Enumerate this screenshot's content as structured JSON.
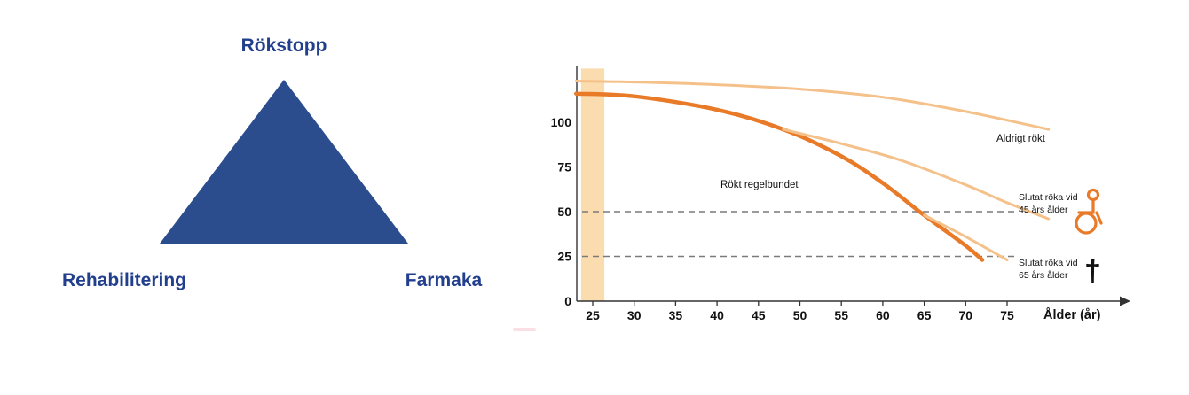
{
  "theme": {
    "blue": "#223f8d",
    "triangle_blue": "#2b4d8e",
    "orange_dark": "#e87a28",
    "orange_light": "#f5c18a",
    "band": "#fbdcae",
    "dash_gray": "#7a7a7a"
  },
  "diagram": {
    "top_label": "Rökstopp",
    "bottom_left_label": "Rehabilitering",
    "bottom_right_label": "Farmaka"
  },
  "chart_data": {
    "type": "line",
    "title": "",
    "xlabel": "Ålder (år)",
    "ylabel": "",
    "x_ticks": [
      25,
      30,
      35,
      40,
      45,
      50,
      55,
      60,
      65,
      70,
      75
    ],
    "y_ticks": [
      0,
      25,
      50,
      75,
      100
    ],
    "xlim": [
      23,
      81
    ],
    "ylim": [
      0,
      130
    ],
    "grid": false,
    "reference_lines": [
      50,
      25
    ],
    "highlight_band": {
      "x_start": 23.6,
      "x_end": 26.4
    },
    "series": [
      {
        "id": "never-smoked",
        "name": "Aldrigt rökt",
        "color": "#f5c18a",
        "width": 3,
        "points": [
          [
            23,
            123
          ],
          [
            30,
            122.5
          ],
          [
            40,
            121
          ],
          [
            50,
            118.5
          ],
          [
            60,
            114
          ],
          [
            70,
            106
          ],
          [
            80,
            96
          ]
        ]
      },
      {
        "id": "regular-smoker",
        "name": "Rökt regelbundet",
        "color": "#e87a28",
        "width": 4.5,
        "points": [
          [
            23,
            116
          ],
          [
            30,
            114.5
          ],
          [
            40,
            107
          ],
          [
            48,
            96
          ],
          [
            55,
            81
          ],
          [
            60,
            66
          ],
          [
            65,
            48
          ],
          [
            70,
            31
          ],
          [
            72,
            23
          ]
        ]
      },
      {
        "id": "quit-45",
        "name": "Slutat röka vid 45 års ålder",
        "color": "#f5c18a",
        "width": 3,
        "points": [
          [
            48,
            96
          ],
          [
            55,
            88
          ],
          [
            62,
            79
          ],
          [
            70,
            65
          ],
          [
            75,
            55
          ],
          [
            80,
            46
          ]
        ]
      },
      {
        "id": "quit-65",
        "name": "Slutat röka vid 65 års ålder",
        "color": "#f5c18a",
        "width": 3,
        "points": [
          [
            65,
            48
          ],
          [
            70,
            36
          ],
          [
            75,
            23
          ]
        ]
      }
    ],
    "annotations": {
      "never_smoked": "Aldrigt rökt",
      "regular_smoker": "Rökt regelbundet",
      "quit45_line1": "Slutat röka vid",
      "quit45_line2": "45 års ålder",
      "quit65_line1": "Slutat röka vid",
      "quit65_line2": "65 års ålder"
    },
    "icons": {
      "death_symbol": "†"
    }
  }
}
